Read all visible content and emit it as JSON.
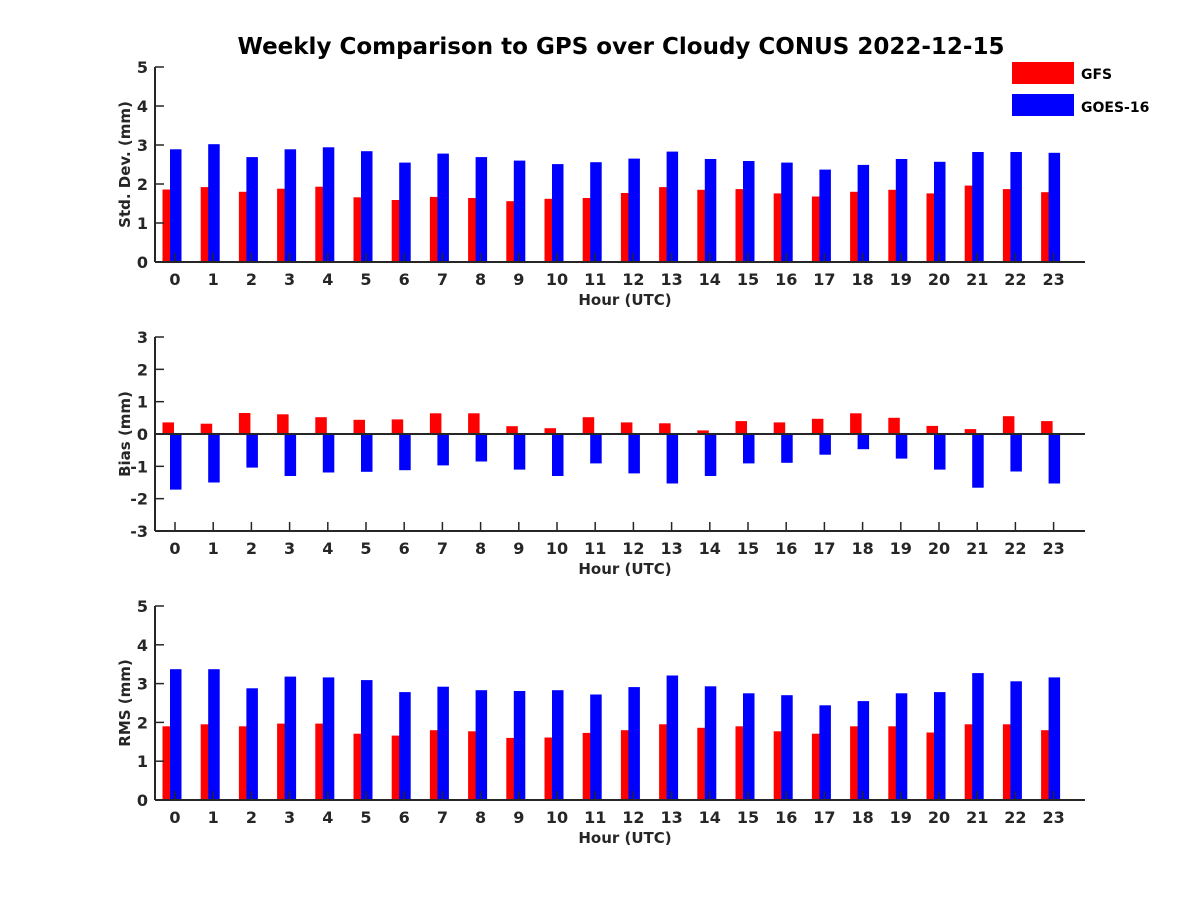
{
  "title": "Weekly Comparison to GPS over Cloudy CONUS 2022-12-15",
  "legend": {
    "placement": "top-right",
    "items": [
      {
        "label": "GFS",
        "color": "#ff0000"
      },
      {
        "label": "GOES-16",
        "color": "#0000ff"
      }
    ]
  },
  "chart_data": [
    {
      "type": "bar",
      "xlabel": "Hour (UTC)",
      "ylabel": "Std. Dev. (mm)",
      "ylim": [
        0,
        5
      ],
      "yticks": [
        0,
        1,
        2,
        3,
        4,
        5
      ],
      "categories": [
        "0",
        "1",
        "2",
        "3",
        "4",
        "5",
        "6",
        "7",
        "8",
        "9",
        "10",
        "11",
        "12",
        "13",
        "14",
        "15",
        "16",
        "17",
        "18",
        "19",
        "20",
        "21",
        "22",
        "23"
      ],
      "series": [
        {
          "name": "GFS",
          "color": "#ff0000",
          "values": [
            1.86,
            1.92,
            1.8,
            1.88,
            1.93,
            1.66,
            1.59,
            1.67,
            1.64,
            1.56,
            1.62,
            1.64,
            1.77,
            1.92,
            1.85,
            1.87,
            1.76,
            1.68,
            1.8,
            1.85,
            1.76,
            1.96,
            1.87,
            1.79
          ]
        },
        {
          "name": "GOES-16",
          "color": "#0000ff",
          "values": [
            2.89,
            3.02,
            2.69,
            2.89,
            2.94,
            2.84,
            2.55,
            2.78,
            2.69,
            2.6,
            2.51,
            2.56,
            2.65,
            2.83,
            2.64,
            2.59,
            2.55,
            2.37,
            2.49,
            2.64,
            2.57,
            2.82,
            2.82,
            2.8
          ]
        }
      ]
    },
    {
      "type": "bar",
      "xlabel": "Hour (UTC)",
      "ylabel": "Bias (mm)",
      "ylim": [
        -3,
        3
      ],
      "yticks": [
        -3,
        -2,
        -1,
        0,
        1,
        2,
        3
      ],
      "categories": [
        "0",
        "1",
        "2",
        "3",
        "4",
        "5",
        "6",
        "7",
        "8",
        "9",
        "10",
        "11",
        "12",
        "13",
        "14",
        "15",
        "16",
        "17",
        "18",
        "19",
        "20",
        "21",
        "22",
        "23"
      ],
      "series": [
        {
          "name": "GFS",
          "color": "#ff0000",
          "values": [
            0.36,
            0.32,
            0.65,
            0.61,
            0.52,
            0.44,
            0.45,
            0.64,
            0.64,
            0.24,
            0.18,
            0.52,
            0.36,
            0.33,
            0.11,
            0.4,
            0.36,
            0.47,
            0.64,
            0.5,
            0.25,
            0.15,
            0.55,
            0.4
          ]
        },
        {
          "name": "GOES-16",
          "color": "#0000ff",
          "values": [
            -1.72,
            -1.5,
            -1.04,
            -1.3,
            -1.19,
            -1.17,
            -1.12,
            -0.97,
            -0.85,
            -1.1,
            -1.3,
            -0.91,
            -1.22,
            -1.53,
            -1.3,
            -0.91,
            -0.89,
            -0.64,
            -0.47,
            -0.76,
            -1.1,
            -1.66,
            -1.16,
            -1.53
          ]
        }
      ]
    },
    {
      "type": "bar",
      "xlabel": "Hour (UTC)",
      "ylabel": "RMS (mm)",
      "ylim": [
        0,
        5
      ],
      "yticks": [
        0,
        1,
        2,
        3,
        4,
        5
      ],
      "categories": [
        "0",
        "1",
        "2",
        "3",
        "4",
        "5",
        "6",
        "7",
        "8",
        "9",
        "10",
        "11",
        "12",
        "13",
        "14",
        "15",
        "16",
        "17",
        "18",
        "19",
        "20",
        "21",
        "22",
        "23"
      ],
      "series": [
        {
          "name": "GFS",
          "color": "#ff0000",
          "values": [
            1.9,
            1.95,
            1.9,
            1.97,
            1.97,
            1.71,
            1.66,
            1.8,
            1.77,
            1.6,
            1.61,
            1.73,
            1.8,
            1.95,
            1.86,
            1.9,
            1.77,
            1.71,
            1.9,
            1.9,
            1.74,
            1.95,
            1.95,
            1.8
          ]
        },
        {
          "name": "GOES-16",
          "color": "#0000ff",
          "values": [
            3.37,
            3.37,
            2.88,
            3.18,
            3.16,
            3.09,
            2.78,
            2.92,
            2.83,
            2.81,
            2.83,
            2.72,
            2.91,
            3.21,
            2.93,
            2.75,
            2.7,
            2.44,
            2.55,
            2.75,
            2.78,
            3.27,
            3.06,
            3.16
          ]
        }
      ]
    }
  ]
}
